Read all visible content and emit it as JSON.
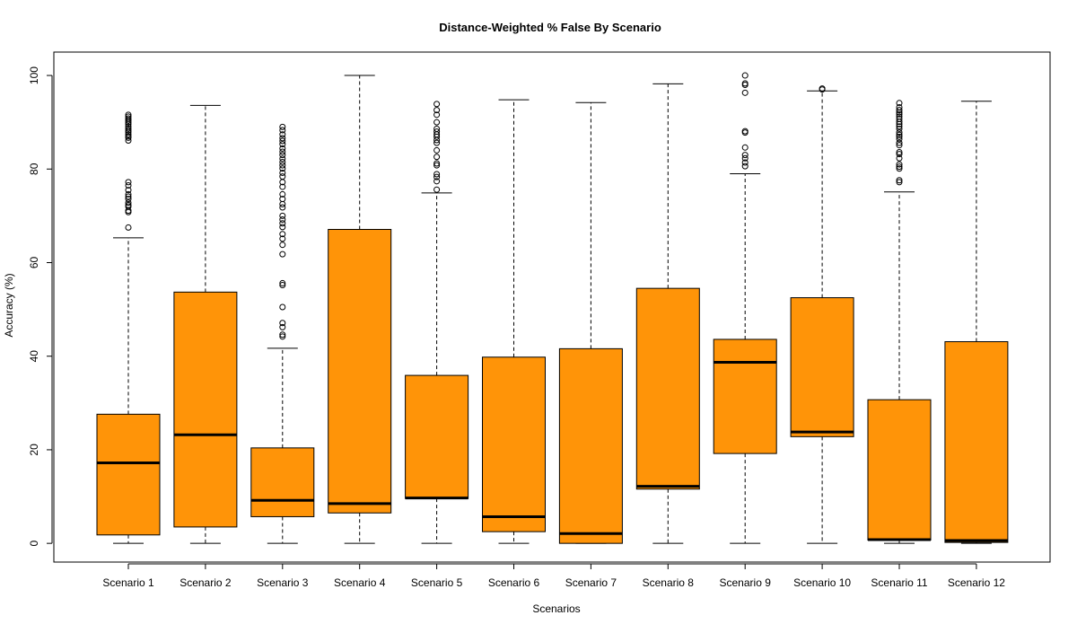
{
  "chart_data": {
    "type": "boxplot",
    "title": "Distance-Weighted % False By Scenario",
    "xlabel": "Scenarios",
    "ylabel": "Accuracy (%)",
    "ylim": [
      -4,
      105
    ],
    "yticks": [
      0,
      20,
      40,
      60,
      80,
      100
    ],
    "box_color": "#FF9408",
    "grid": false,
    "series": [
      {
        "category": "Scenario 1",
        "whisker_low": 0,
        "q1": 1.8,
        "median": 17.2,
        "q3": 27.6,
        "whisker_high": 65.3,
        "outliers": [
          67.5,
          70.8,
          71.1,
          72.0,
          72.3,
          72.8,
          73.6,
          74.1,
          74.6,
          75.5,
          76.5,
          77.2,
          86.1,
          86.7,
          87.0,
          87.4,
          87.9,
          88.3,
          88.7,
          89.1,
          89.6,
          90.0,
          90.4,
          90.8,
          91.2,
          91.6
        ]
      },
      {
        "category": "Scenario 2",
        "whisker_low": 0,
        "q1": 3.5,
        "median": 23.2,
        "q3": 53.7,
        "whisker_high": 93.6,
        "outliers": []
      },
      {
        "category": "Scenario 3",
        "whisker_low": 0,
        "q1": 5.7,
        "median": 9.2,
        "q3": 20.4,
        "whisker_high": 41.7,
        "outliers": [
          44.2,
          44.6,
          46.2,
          47.1,
          50.5,
          55.2,
          55.6,
          61.8,
          63.8,
          65.1,
          66.1,
          67.6,
          68.4,
          69.2,
          70.0,
          71.8,
          72.5,
          73.6,
          74.6,
          76.2,
          77.2,
          78.4,
          79.2,
          80.1,
          80.8,
          81.5,
          82.2,
          83.0,
          83.7,
          84.4,
          85.3,
          86.0,
          86.6,
          87.4,
          88.3,
          89.0
        ]
      },
      {
        "category": "Scenario 4",
        "whisker_low": 0,
        "q1": 6.5,
        "median": 8.5,
        "q3": 67.1,
        "whisker_high": 100,
        "outliers": []
      },
      {
        "category": "Scenario 5",
        "whisker_low": 0,
        "q1": 9.6,
        "median": 9.7,
        "q3": 35.9,
        "whisker_high": 74.9,
        "outliers": [
          75.6,
          77.4,
          78.3,
          78.9,
          80.8,
          81.2,
          82.6,
          84.0,
          85.6,
          86.2,
          86.9,
          87.4,
          88.0,
          88.6,
          90.0,
          91.6,
          92.6,
          93.9
        ]
      },
      {
        "category": "Scenario 6",
        "whisker_low": 0,
        "q1": 2.5,
        "median": 5.7,
        "q3": 39.8,
        "whisker_high": 94.8,
        "outliers": []
      },
      {
        "category": "Scenario 7",
        "whisker_low": 0,
        "q1": 0,
        "median": 2.1,
        "q3": 41.6,
        "whisker_high": 94.2,
        "outliers": []
      },
      {
        "category": "Scenario 8",
        "whisker_low": 0,
        "q1": 11.6,
        "median": 12.2,
        "q3": 54.5,
        "whisker_high": 98.2,
        "outliers": []
      },
      {
        "category": "Scenario 9",
        "whisker_low": 0,
        "q1": 19.2,
        "median": 38.7,
        "q3": 43.6,
        "whisker_high": 79.0,
        "outliers": [
          80.6,
          81.4,
          82.3,
          83.0,
          84.6,
          87.8,
          88.1,
          96.3,
          98.0,
          98.3,
          100
        ]
      },
      {
        "category": "Scenario 10",
        "whisker_low": 0,
        "q1": 22.8,
        "median": 23.8,
        "q3": 52.5,
        "whisker_high": 96.7,
        "outliers": [
          97.0,
          97.2
        ]
      },
      {
        "category": "Scenario 11",
        "whisker_low": 0,
        "q1": 0.7,
        "median": 0.8,
        "q3": 30.7,
        "whisker_high": 75.1,
        "outliers": [
          77.2,
          77.6,
          80.1,
          80.5,
          81.0,
          82.3,
          83.2,
          83.6,
          85.1,
          85.6,
          86.4,
          86.9,
          87.3,
          87.8,
          88.6,
          89.1,
          89.6,
          90.1,
          90.7,
          91.2,
          91.7,
          92.1,
          92.6,
          93.2,
          94.1
        ]
      },
      {
        "category": "Scenario 12",
        "whisker_low": 0,
        "q1": 0.2,
        "median": 0.6,
        "q3": 43.1,
        "whisker_high": 94.5,
        "outliers": []
      }
    ]
  }
}
